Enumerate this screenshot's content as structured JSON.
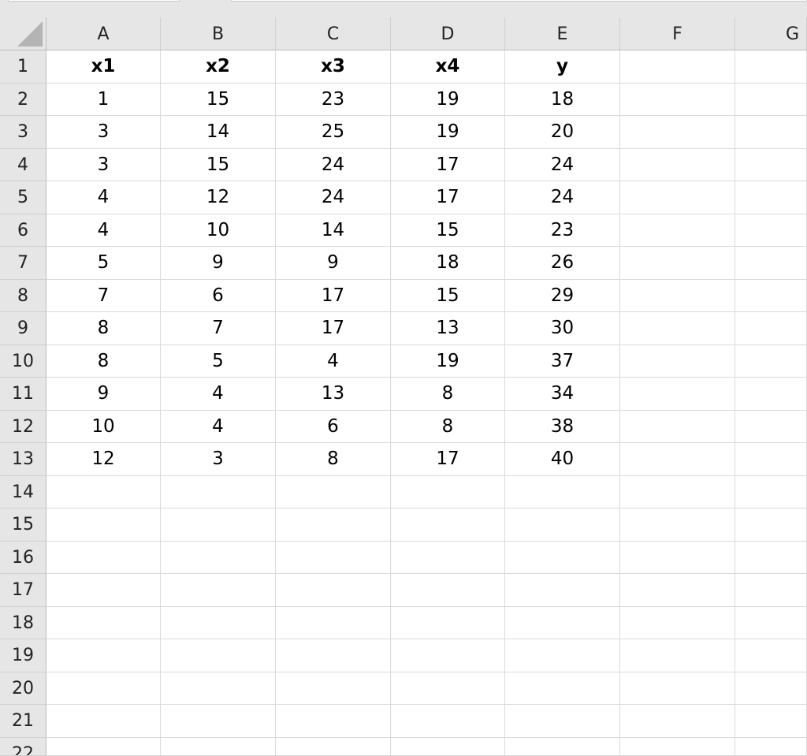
{
  "columns": [
    "A",
    "B",
    "C",
    "D",
    "E",
    "F",
    "G"
  ],
  "rows": [
    "1",
    "2",
    "3",
    "4",
    "5",
    "6",
    "7",
    "8",
    "9",
    "10",
    "11",
    "12",
    "13",
    "14",
    "15",
    "16",
    "17",
    "18",
    "19",
    "20",
    "21",
    "22"
  ],
  "cells": [
    [
      "x1",
      "x2",
      "x3",
      "x4",
      "y",
      "",
      ""
    ],
    [
      "1",
      "15",
      "23",
      "19",
      "18",
      "",
      ""
    ],
    [
      "3",
      "14",
      "25",
      "19",
      "20",
      "",
      ""
    ],
    [
      "3",
      "15",
      "24",
      "17",
      "24",
      "",
      ""
    ],
    [
      "4",
      "12",
      "24",
      "17",
      "24",
      "",
      ""
    ],
    [
      "4",
      "10",
      "14",
      "15",
      "23",
      "",
      ""
    ],
    [
      "5",
      "9",
      "9",
      "18",
      "26",
      "",
      ""
    ],
    [
      "7",
      "6",
      "17",
      "15",
      "29",
      "",
      ""
    ],
    [
      "8",
      "7",
      "17",
      "13",
      "30",
      "",
      ""
    ],
    [
      "8",
      "5",
      "4",
      "19",
      "37",
      "",
      ""
    ],
    [
      "9",
      "4",
      "13",
      "8",
      "34",
      "",
      ""
    ],
    [
      "10",
      "4",
      "6",
      "8",
      "38",
      "",
      ""
    ],
    [
      "12",
      "3",
      "8",
      "17",
      "40",
      "",
      ""
    ]
  ],
  "icons": {
    "select_all": "select-all-triangle-icon"
  }
}
